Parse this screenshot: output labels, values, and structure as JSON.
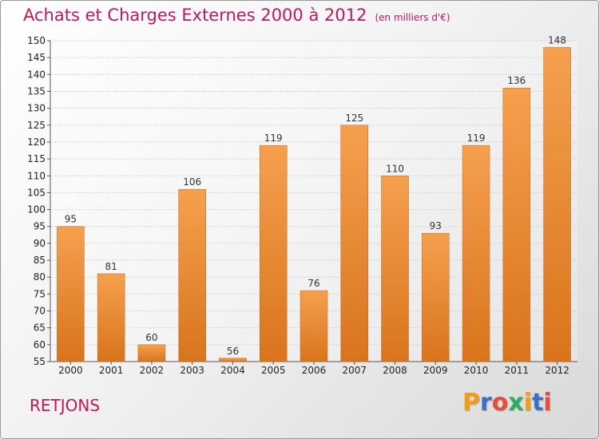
{
  "header": {
    "title": "Achats et Charges Externes 2000 à 2012",
    "unit": "(en milliers d'€)"
  },
  "footer": {
    "commune": "RETJONS",
    "brand": "Proxiti",
    "brand_letter_colors": [
      "#f39c12",
      "#3a6fc4",
      "#e74c3c",
      "#27ae60",
      "#f39c12",
      "#3a6fc4",
      "#e74c3c"
    ]
  },
  "colors": {
    "bar_top": "#f5a04e",
    "bar_bottom": "#d9741c",
    "title": "#c2185b",
    "grid": "#bdbdbd"
  },
  "chart_data": {
    "type": "bar",
    "title": "Achats et Charges Externes 2000 à 2012",
    "xlabel": "",
    "ylabel": "",
    "ylim": [
      55,
      150
    ],
    "yticks": [
      55,
      60,
      65,
      70,
      75,
      80,
      85,
      90,
      95,
      100,
      105,
      110,
      115,
      120,
      125,
      130,
      135,
      140,
      145,
      150
    ],
    "categories": [
      "2000",
      "2001",
      "2002",
      "2003",
      "2004",
      "2005",
      "2006",
      "2007",
      "2008",
      "2009",
      "2010",
      "2011",
      "2012"
    ],
    "values": [
      95,
      81,
      60,
      106,
      56,
      119,
      76,
      125,
      110,
      93,
      119,
      136,
      148
    ],
    "grid": true
  }
}
